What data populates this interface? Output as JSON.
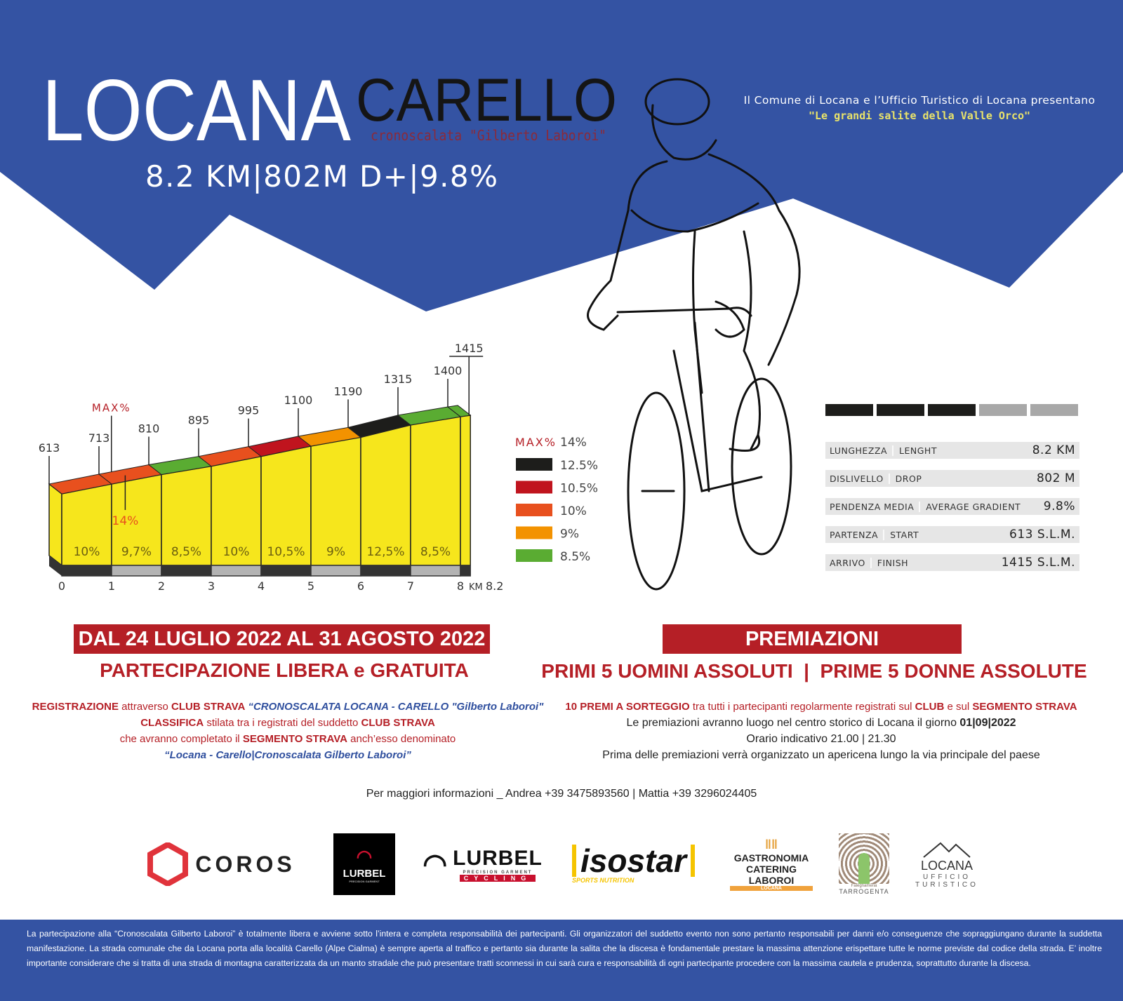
{
  "header": {
    "title_left": "LOCANA",
    "title_right": "CARELLO",
    "subtitle": "cronoscalata \"Gilberto Laboroi\"",
    "summary": "8.2 KM|802M D+|9.8%",
    "presenter": "Il Comune di Locana e l’Ufficio Turistico di Locana presentano",
    "tagline": "\"Le grandi salite della Valle Orco\""
  },
  "colors": {
    "blue": "#3453a3",
    "red": "#b51f26",
    "yellow": "#f6e61c",
    "orange_red": "#e8501e",
    "deep_red": "#c0141e",
    "orange": "#f39200",
    "black": "#1d1d1b",
    "green": "#5aac32"
  },
  "chart_data": {
    "type": "area",
    "xlabel": "KM",
    "x_ticks": [
      "0",
      "1",
      "2",
      "3",
      "4",
      "5",
      "6",
      "7",
      "8"
    ],
    "x_end_label": "8.2",
    "distance_km": [
      0,
      1,
      2,
      3,
      4,
      5,
      6,
      7,
      8,
      8.2
    ],
    "elevation_labels": [
      "613",
      "713",
      "810",
      "895",
      "995",
      "1100",
      "1190",
      "1315",
      "1400",
      "1415"
    ],
    "elevation_m": [
      613,
      713,
      810,
      895,
      995,
      1100,
      1190,
      1315,
      1400,
      1415
    ],
    "segments": [
      {
        "from": 0,
        "to": 1,
        "gradient": "10%",
        "color": "#e8501e"
      },
      {
        "from": 1,
        "to": 2,
        "gradient": "9,7%",
        "color": "#e8501e"
      },
      {
        "from": 2,
        "to": 3,
        "gradient": "8,5%",
        "color": "#5aac32"
      },
      {
        "from": 3,
        "to": 4,
        "gradient": "10%",
        "color": "#e8501e"
      },
      {
        "from": 4,
        "to": 5,
        "gradient": "10,5%",
        "color": "#c0141e"
      },
      {
        "from": 5,
        "to": 6,
        "gradient": "9%",
        "color": "#f39200"
      },
      {
        "from": 6,
        "to": 7,
        "gradient": "12,5%",
        "color": "#1d1d1b"
      },
      {
        "from": 7,
        "to": 8,
        "gradient": "8,5%",
        "color": "#5aac32"
      },
      {
        "from": 8,
        "to": 8.2,
        "gradient": "",
        "color": "#5aac32"
      }
    ],
    "max_label": "MAX%",
    "max_value": "14%",
    "max_at_km": 1.4,
    "legend": {
      "max_label": "MAX%",
      "max_value": "14%",
      "items": [
        {
          "label": "12.5%",
          "color": "#1d1d1b"
        },
        {
          "label": "10.5%",
          "color": "#c0141e"
        },
        {
          "label": "10%",
          "color": "#e8501e"
        },
        {
          "label": "9%",
          "color": "#f39200"
        },
        {
          "label": "8.5%",
          "color": "#5aac32"
        }
      ]
    }
  },
  "difficulty": {
    "level": 3,
    "max": 5
  },
  "stats": [
    {
      "label_it": "LUNGHEZZA",
      "label_en": "LENGHT",
      "value": "8.2 KM"
    },
    {
      "label_it": "DISLIVELLO",
      "label_en": "DROP",
      "value": "802 M"
    },
    {
      "label_it": "PENDENZA MEDIA",
      "label_en": "AVERAGE GRADIENT",
      "value": "9.8%"
    },
    {
      "label_it": "PARTENZA",
      "label_en": "START",
      "value": "613 S.L.M."
    },
    {
      "label_it": "ARRIVO",
      "label_en": "FINISH",
      "value": "1415 S.L.M."
    }
  ],
  "left_block": {
    "banner": "DAL 24 LUGLIO 2022 AL 31 AGOSTO 2022",
    "heading": "PARTECIPAZIONE LIBERA e GRATUITA",
    "lines": [
      [
        {
          "t": "REGISTRAZIONE",
          "c": "b"
        },
        {
          "t": " attraverso ",
          "c": ""
        },
        {
          "t": "CLUB STRAVA",
          "c": "b"
        },
        {
          "t": " “CRONOSCALATA LOCANA - CARELLO \"Gilberto Laboroi\"",
          "c": "blue"
        }
      ],
      [
        {
          "t": "CLASSIFICA",
          "c": "b"
        },
        {
          "t": " stilata tra i registrati del suddetto ",
          "c": ""
        },
        {
          "t": "CLUB STRAVA",
          "c": "b"
        }
      ],
      [
        {
          "t": "che avranno completato il ",
          "c": ""
        },
        {
          "t": "SEGMENTO STRAVA",
          "c": "b"
        },
        {
          "t": " anch’esso denominato",
          "c": ""
        }
      ],
      [
        {
          "t": "“Locana - Carello|Cronoscalata Gilberto Laboroi”",
          "c": "blue"
        }
      ]
    ]
  },
  "right_block": {
    "banner": "PREMIAZIONI",
    "heading": "PRIMI 5 UOMINI ASSOLUTI  |  PRIME 5 DONNE ASSOLUTE",
    "lines": [
      [
        {
          "t": "10 PREMI A SORTEGGIO",
          "c": "b"
        },
        {
          "t": " tra tutti i partecipanti regolarmente registrati sul ",
          "c": ""
        },
        {
          "t": "CLUB",
          "c": "b"
        },
        {
          "t": " e sul ",
          "c": ""
        },
        {
          "t": "SEGMENTO STRAVA",
          "c": "b"
        }
      ],
      [
        {
          "t": "Le premiazioni avranno luogo nel centro storico di Locana il giorno ",
          "c": "blk"
        },
        {
          "t": "01|09|2022",
          "c": "blk b"
        }
      ],
      [
        {
          "t": "Orario indicativo 21.00 | 21.30",
          "c": "blk"
        }
      ],
      [
        {
          "t": "Prima delle premiazioni verrà organizzato un apericena lungo la via principale del paese",
          "c": "blk"
        }
      ]
    ]
  },
  "info": "Per maggiori informazioni _ Andrea +39 3475893560 | Mattia +39 3296024405",
  "sponsors": [
    {
      "name": "COROS"
    },
    {
      "name": "LURBEL",
      "sub": "PRECISION GARMENT"
    },
    {
      "name": "LURBEL",
      "sub": "PRECISION GARMENT",
      "sub2": "CYCLING"
    },
    {
      "name": "isostar",
      "sub": "SPORTS NUTRITION"
    },
    {
      "name": "GASTRONOMIA CATERING LABOROI",
      "sub": "LOCANA"
    },
    {
      "name": "TARROGENTA",
      "sub": "Falegnameria"
    },
    {
      "name": "LOCANA",
      "sub": "UFFICIO TURISTICO"
    }
  ],
  "footer": "La partecipazione alla “Cronoscalata Gilberto Laboroi” è totalmente libera e avviene sotto l’intera e completa responsabilità dei partecipanti. Gli organizzatori del suddetto evento non sono pertanto responsabili per danni e/o conseguenze che sopraggiungano durante la suddetta manifestazione. La strada comunale che da Locana porta alla località Carello (Alpe Cialma) è sempre aperta al traffico e pertanto sia durante la salita che la discesa è fondamentale prestare la massima attenzione erispettare tutte le norme previste dal codice della strada. E’ inoltre importante considerare che si tratta di una strada di montagna caratterizzata da un manto stradale che può presentare tratti sconnessi in cui sarà cura e responsabilità di ogni partecipante procedere con la massima cautela e prudenza, soprattutto durante la discesa."
}
